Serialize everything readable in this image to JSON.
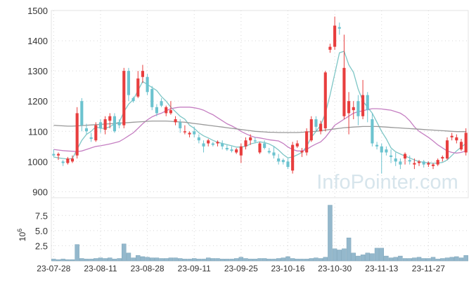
{
  "watermark": "InfoPointer.com",
  "colors": {
    "up": "#e83e3e",
    "down": "#6cc3cf",
    "ma5": "#7ec6c6",
    "ma20": "#c57fc2",
    "ma60": "#999999",
    "volume": "#94b8cc",
    "grid": "#d6d6d6",
    "axis_text": "#333333"
  },
  "chart_data": [
    {
      "type": "candlestick",
      "title": "",
      "ylim": [
        880,
        1500
      ],
      "yticks": [
        "900",
        "1000",
        "1100",
        "1200",
        "1300",
        "1400",
        "1500"
      ],
      "xticks": [
        "23-07-28",
        "23-08-11",
        "23-08-28",
        "23-09-11",
        "23-09-25",
        "23-10-16",
        "23-10-30",
        "23-11-13",
        "23-11-27"
      ],
      "xtick_index": [
        0,
        10,
        20,
        30,
        40,
        50,
        60,
        70,
        80
      ],
      "ohlc": [
        [
          1025,
          1040,
          1015,
          1020
        ],
        [
          1020,
          1030,
          1005,
          1025
        ],
        [
          1000,
          1005,
          985,
          995
        ],
        [
          995,
          1015,
          990,
          1010
        ],
        [
          1000,
          1020,
          995,
          1010
        ],
        [
          1020,
          1180,
          1010,
          1160
        ],
        [
          1200,
          1210,
          1100,
          1120
        ],
        [
          1110,
          1125,
          1090,
          1100
        ],
        [
          1080,
          1095,
          1065,
          1075
        ],
        [
          1070,
          1130,
          1065,
          1120
        ],
        [
          1130,
          1140,
          1095,
          1110
        ],
        [
          1105,
          1150,
          1090,
          1140
        ],
        [
          1135,
          1160,
          1110,
          1150
        ],
        [
          1150,
          1160,
          1095,
          1100
        ],
        [
          1130,
          1140,
          1110,
          1120
        ],
        [
          1120,
          1310,
          1110,
          1300
        ],
        [
          1300,
          1310,
          1200,
          1220
        ],
        [
          1210,
          1215,
          1195,
          1200
        ],
        [
          1215,
          1300,
          1210,
          1275
        ],
        [
          1280,
          1320,
          1260,
          1300
        ],
        [
          1280,
          1290,
          1220,
          1230
        ],
        [
          1240,
          1250,
          1170,
          1180
        ],
        [
          1180,
          1190,
          1150,
          1160
        ],
        [
          1200,
          1210,
          1180,
          1185
        ],
        [
          1160,
          1185,
          1150,
          1180
        ],
        [
          1160,
          1200,
          1155,
          1170
        ],
        [
          1130,
          1150,
          1120,
          1140
        ],
        [
          1130,
          1140,
          1095,
          1110
        ],
        [
          1100,
          1120,
          1090,
          1100
        ],
        [
          1090,
          1100,
          1080,
          1095
        ],
        [
          1100,
          1115,
          1080,
          1090
        ],
        [
          1080,
          1090,
          1060,
          1070
        ],
        [
          1060,
          1070,
          1030,
          1050
        ],
        [
          1060,
          1075,
          1050,
          1070
        ],
        [
          1060,
          1065,
          1050,
          1055
        ],
        [
          1060,
          1070,
          1050,
          1065
        ],
        [
          1060,
          1070,
          1040,
          1050
        ],
        [
          1045,
          1055,
          1035,
          1040
        ],
        [
          1040,
          1050,
          1030,
          1035
        ],
        [
          1030,
          1045,
          1025,
          1040
        ],
        [
          1020,
          1060,
          995,
          1050
        ],
        [
          1050,
          1080,
          1040,
          1070
        ],
        [
          1070,
          1090,
          1055,
          1080
        ],
        [
          1070,
          1080,
          1060,
          1068
        ],
        [
          1030,
          1065,
          1025,
          1060
        ],
        [
          1060,
          1070,
          1040,
          1045
        ],
        [
          1035,
          1045,
          1025,
          1030
        ],
        [
          1030,
          1050,
          1010,
          1020
        ],
        [
          1010,
          1025,
          990,
          1000
        ],
        [
          1005,
          1010,
          990,
          998
        ],
        [
          1000,
          1010,
          975,
          982
        ],
        [
          970,
          1065,
          960,
          1055
        ],
        [
          1050,
          1070,
          1045,
          1060
        ],
        [
          1030,
          1045,
          1015,
          1035
        ],
        [
          1030,
          1110,
          1020,
          1100
        ],
        [
          1070,
          1150,
          1065,
          1140
        ],
        [
          1140,
          1150,
          1100,
          1115
        ],
        [
          1100,
          1135,
          1090,
          1125
        ],
        [
          1110,
          1300,
          1100,
          1295
        ],
        [
          1370,
          1390,
          1360,
          1380
        ],
        [
          1380,
          1480,
          1370,
          1450
        ],
        [
          1445,
          1460,
          1420,
          1440
        ],
        [
          1150,
          1420,
          1140,
          1310
        ],
        [
          1160,
          1230,
          1090,
          1200
        ],
        [
          1170,
          1200,
          1140,
          1180
        ],
        [
          1200,
          1220,
          1120,
          1150
        ],
        [
          1150,
          1270,
          1140,
          1220
        ],
        [
          1220,
          1230,
          1130,
          1170
        ],
        [
          1140,
          1160,
          1050,
          1060
        ],
        [
          1055,
          1065,
          1040,
          1050
        ],
        [
          1050,
          1060,
          960,
          1030
        ],
        [
          1040,
          1050,
          1020,
          1030
        ],
        [
          1020,
          1040,
          995,
          1015
        ],
        [
          1010,
          1030,
          985,
          1000
        ],
        [
          1000,
          1010,
          975,
          990
        ],
        [
          1010,
          1030,
          990,
          1025
        ],
        [
          1005,
          1020,
          990,
          1000
        ],
        [
          990,
          1010,
          975,
          995
        ],
        [
          995,
          1005,
          985,
          1000
        ],
        [
          1000,
          1005,
          980,
          990
        ],
        [
          990,
          1000,
          982,
          995
        ],
        [
          985,
          995,
          975,
          990
        ],
        [
          990,
          1010,
          985,
          1005
        ],
        [
          1010,
          1020,
          1000,
          1015
        ],
        [
          1010,
          1080,
          1005,
          1070
        ],
        [
          1080,
          1095,
          1070,
          1085
        ],
        [
          1070,
          1090,
          1060,
          1080
        ],
        [
          1040,
          1075,
          1035,
          1065
        ],
        [
          1030,
          1110,
          1020,
          1095
        ]
      ],
      "series": [
        {
          "key": "ma5",
          "values": [
            1015,
            1012,
            1010,
            1008,
            1010,
            1040,
            1070,
            1090,
            1100,
            1115,
            1110,
            1110,
            1115,
            1125,
            1130,
            1165,
            1190,
            1205,
            1235,
            1265,
            1255,
            1245,
            1235,
            1215,
            1200,
            1180,
            1165,
            1150,
            1140,
            1120,
            1110,
            1095,
            1085,
            1078,
            1070,
            1064,
            1060,
            1056,
            1052,
            1048,
            1048,
            1050,
            1058,
            1062,
            1065,
            1063,
            1058,
            1050,
            1038,
            1023,
            1012,
            1015,
            1022,
            1030,
            1050,
            1080,
            1100,
            1120,
            1160,
            1220,
            1290,
            1360,
            1365,
            1320,
            1295,
            1240,
            1200,
            1180,
            1160,
            1130,
            1100,
            1075,
            1045,
            1032,
            1025,
            1018,
            1012,
            1005,
            1000,
            997,
            996,
            994,
            995,
            997,
            1005,
            1020,
            1035,
            1048,
            1060
          ]
        },
        {
          "key": "ma20",
          "values": [
            1040,
            1038,
            1036,
            1035,
            1034,
            1033,
            1035,
            1040,
            1045,
            1050,
            1052,
            1055,
            1058,
            1062,
            1066,
            1075,
            1085,
            1095,
            1110,
            1125,
            1138,
            1148,
            1155,
            1160,
            1168,
            1175,
            1178,
            1180,
            1180,
            1180,
            1178,
            1175,
            1170,
            1162,
            1155,
            1145,
            1135,
            1125,
            1118,
            1110,
            1100,
            1092,
            1085,
            1080,
            1078,
            1075,
            1072,
            1070,
            1068,
            1060,
            1048,
            1040,
            1035,
            1035,
            1040,
            1050,
            1058,
            1065,
            1080,
            1100,
            1120,
            1130,
            1140,
            1150,
            1160,
            1165,
            1168,
            1172,
            1175,
            1175,
            1174,
            1172,
            1170,
            1165,
            1160,
            1150,
            1135,
            1115,
            1100,
            1090,
            1080,
            1068,
            1055,
            1045,
            1035,
            1030,
            1028,
            1030,
            1035
          ]
        },
        {
          "key": "ma60",
          "values": [
            1120,
            1119,
            1118,
            1117,
            1117,
            1118,
            1119,
            1120,
            1121,
            1122,
            1123,
            1124,
            1125,
            1126,
            1127,
            1128,
            1129,
            1130,
            1131,
            1132,
            1133,
            1134,
            1134,
            1134,
            1134,
            1133,
            1132,
            1131,
            1130,
            1128,
            1126,
            1124,
            1122,
            1120,
            1118,
            1116,
            1114,
            1112,
            1110,
            1108,
            1106,
            1104,
            1102,
            1100,
            1099,
            1098,
            1097,
            1097,
            1096,
            1096,
            1096,
            1096,
            1096,
            1097,
            1098,
            1099,
            1100,
            1102,
            1104,
            1106,
            1108,
            1110,
            1112,
            1113,
            1114,
            1115,
            1116,
            1116,
            1116,
            1116,
            1115,
            1114,
            1113,
            1112,
            1111,
            1110,
            1109,
            1108,
            1107,
            1106,
            1105,
            1104,
            1103,
            1102,
            1101,
            1100,
            1099,
            1099,
            1099
          ]
        }
      ]
    },
    {
      "type": "bar",
      "ylabel": "10^6",
      "ylim": [
        0,
        9.5
      ],
      "yticks": [
        "2.5",
        "5.0",
        "7.5"
      ],
      "values": [
        0.3,
        0.2,
        0.3,
        0.2,
        0.2,
        2.7,
        0.4,
        0.3,
        0.3,
        0.4,
        0.5,
        0.4,
        0.5,
        0.3,
        0.4,
        2.8,
        1.3,
        0.5,
        0.9,
        0.7,
        0.6,
        0.5,
        0.5,
        0.4,
        0.4,
        0.5,
        0.5,
        0.4,
        0.3,
        0.3,
        0.4,
        0.3,
        0.3,
        0.5,
        0.4,
        0.4,
        0.3,
        0.3,
        0.3,
        0.4,
        0.6,
        0.4,
        0.3,
        0.3,
        0.4,
        0.4,
        0.3,
        0.3,
        0.4,
        0.5,
        0.7,
        0.4,
        0.3,
        0.3,
        0.3,
        0.4,
        0.5,
        0.4,
        0.6,
        9.2,
        2.0,
        1.8,
        2.0,
        3.8,
        1.3,
        0.8,
        1.0,
        1.3,
        1.2,
        2.1,
        2.1,
        0.8,
        0.5,
        0.6,
        0.8,
        0.4,
        0.4,
        0.5,
        0.6,
        0.4,
        0.4,
        0.6,
        0.3,
        0.4,
        0.5,
        0.6,
        0.7,
        0.5,
        0.9
      ]
    }
  ]
}
